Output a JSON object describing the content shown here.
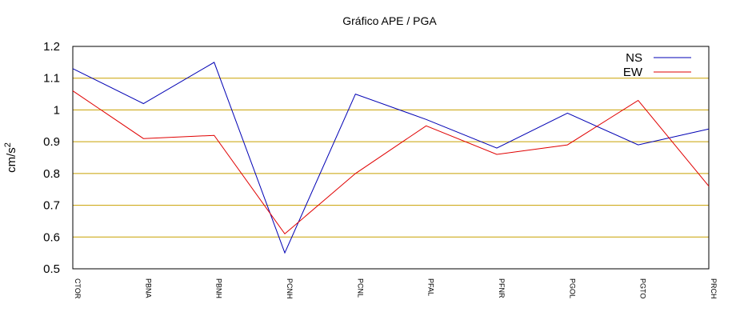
{
  "chart_data": {
    "type": "line",
    "title": "Gráfico  APE / PGA",
    "ylabel_base": "cm/s",
    "ylabel_exp": "2",
    "xlabel": "",
    "categories": [
      "CTOR",
      "PBNA",
      "PBNH",
      "PCNH",
      "PCNL",
      "PFAL",
      "PFNR",
      "PGOL",
      "PGTO",
      "PRCH"
    ],
    "ylim": [
      0.5,
      1.2
    ],
    "yticks": [
      "0.5",
      "0.6",
      "0.7",
      "0.8",
      "0.9",
      "1",
      "1.1",
      "1.2"
    ],
    "grid": true,
    "grid_color": "#c8a000",
    "legend_position": "top-right",
    "series": [
      {
        "name": "NS",
        "color": "#0000b4",
        "values": [
          1.13,
          1.02,
          1.15,
          0.55,
          1.05,
          0.97,
          0.88,
          0.99,
          0.89,
          0.94
        ]
      },
      {
        "name": "EW",
        "color": "#e00000",
        "values": [
          1.06,
          0.91,
          0.92,
          0.61,
          0.8,
          0.95,
          0.86,
          0.89,
          1.03,
          0.76
        ]
      }
    ]
  }
}
